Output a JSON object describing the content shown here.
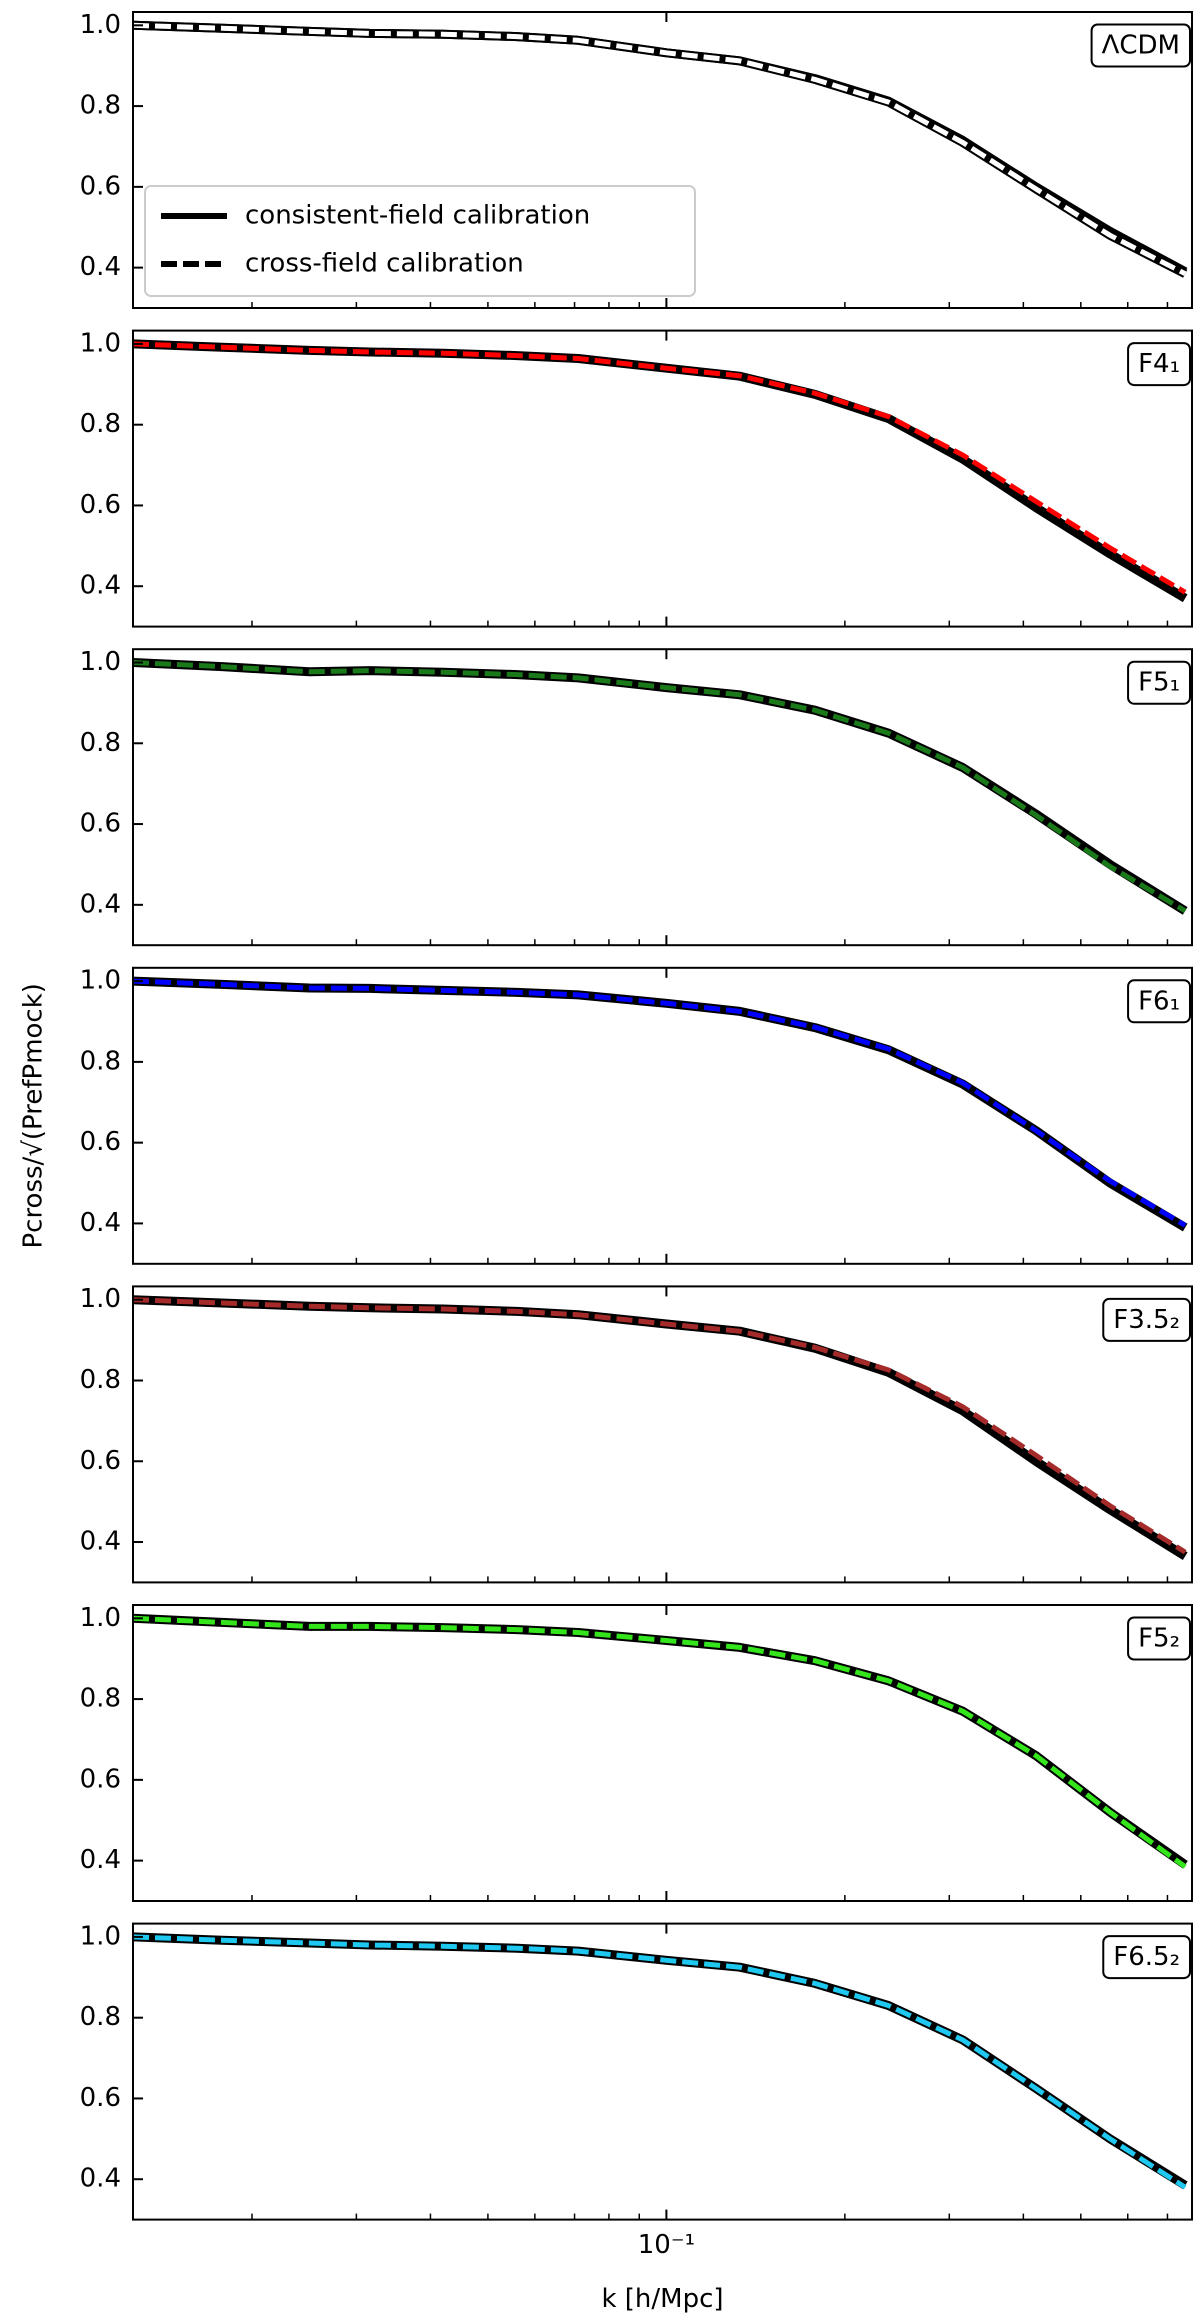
{
  "chart_data": [
    {
      "type": "line",
      "annotation": "ΛCDM",
      "legend": "lower left",
      "x": [
        0.0126,
        0.0178,
        0.025,
        0.0316,
        0.042,
        0.056,
        0.071,
        0.1,
        0.133,
        0.178,
        0.237,
        0.316,
        0.42,
        0.56,
        0.75
      ],
      "series": [
        {
          "name": "consistent-field calibration",
          "color": "#000000",
          "style": "solid",
          "values": [
            1.0,
            0.993,
            0.985,
            0.98,
            0.978,
            0.972,
            0.963,
            0.932,
            0.912,
            0.868,
            0.812,
            0.715,
            0.6,
            0.49,
            0.39
          ]
        },
        {
          "name": "cross-field calibration",
          "color": "#ffffff",
          "style": "dashed",
          "values": [
            1.0,
            0.993,
            0.985,
            0.98,
            0.978,
            0.972,
            0.963,
            0.932,
            0.912,
            0.866,
            0.81,
            0.71,
            0.595,
            0.48,
            0.385
          ]
        }
      ],
      "xlim": [
        0.0126,
        0.77
      ],
      "xticks": [
        0.1
      ],
      "xminorticks": [
        0.02,
        0.03,
        0.04,
        0.05,
        0.06,
        0.07,
        0.08,
        0.09,
        0.2,
        0.3,
        0.4,
        0.5,
        0.6,
        0.7
      ],
      "ylim": [
        0.3,
        1.033
      ],
      "yticks": [
        0.4,
        0.6,
        0.8,
        {
          "value": 1.0,
          "label": "1.0"
        }
      ]
    },
    {
      "type": "line",
      "annotation": "F4₁",
      "x": [
        0.0126,
        0.0178,
        0.025,
        0.0316,
        0.042,
        0.056,
        0.071,
        0.1,
        0.133,
        0.178,
        0.237,
        0.316,
        0.42,
        0.56,
        0.75
      ],
      "series": [
        {
          "name": "consistent-field calibration",
          "color": "#000000",
          "style": "solid",
          "values": [
            1.0,
            0.992,
            0.984,
            0.98,
            0.977,
            0.971,
            0.964,
            0.94,
            0.92,
            0.875,
            0.815,
            0.715,
            0.595,
            0.48,
            0.37
          ]
        },
        {
          "name": "cross-field calibration",
          "color": "#ff0000",
          "style": "dashed",
          "values": [
            1.0,
            0.992,
            0.984,
            0.98,
            0.977,
            0.971,
            0.964,
            0.94,
            0.921,
            0.878,
            0.82,
            0.725,
            0.61,
            0.495,
            0.385
          ]
        }
      ],
      "xlim": [
        0.0126,
        0.77
      ],
      "xticks": [
        0.1
      ],
      "xminorticks": [
        0.02,
        0.03,
        0.04,
        0.05,
        0.06,
        0.07,
        0.08,
        0.09,
        0.2,
        0.3,
        0.4,
        0.5,
        0.6,
        0.7
      ],
      "ylim": [
        0.3,
        1.033
      ],
      "yticks": [
        0.4,
        0.6,
        0.8,
        {
          "value": 1.0,
          "label": "1.0"
        }
      ]
    },
    {
      "type": "line",
      "annotation": "F5₁",
      "x": [
        0.0126,
        0.0178,
        0.025,
        0.0316,
        0.042,
        0.056,
        0.071,
        0.1,
        0.133,
        0.178,
        0.237,
        0.316,
        0.42,
        0.56,
        0.75
      ],
      "series": [
        {
          "name": "consistent-field calibration",
          "color": "#000000",
          "style": "solid",
          "values": [
            1.0,
            0.99,
            0.977,
            0.98,
            0.976,
            0.97,
            0.962,
            0.938,
            0.92,
            0.882,
            0.825,
            0.74,
            0.625,
            0.5,
            0.385
          ]
        },
        {
          "name": "cross-field calibration",
          "color": "#1a7a1a",
          "style": "dashed",
          "values": [
            1.0,
            0.99,
            0.977,
            0.98,
            0.976,
            0.97,
            0.962,
            0.938,
            0.92,
            0.882,
            0.825,
            0.74,
            0.622,
            0.495,
            0.385
          ]
        }
      ],
      "xlim": [
        0.0126,
        0.77
      ],
      "xticks": [
        0.1
      ],
      "xminorticks": [
        0.02,
        0.03,
        0.04,
        0.05,
        0.06,
        0.07,
        0.08,
        0.09,
        0.2,
        0.3,
        0.4,
        0.5,
        0.6,
        0.7
      ],
      "ylim": [
        0.3,
        1.033
      ],
      "yticks": [
        0.4,
        0.6,
        0.8,
        {
          "value": 1.0,
          "label": "1.0"
        }
      ]
    },
    {
      "type": "line",
      "annotation": "F6₁",
      "ylabel": "Pcross/√(PrefPmock)",
      "x": [
        0.0126,
        0.0178,
        0.025,
        0.0316,
        0.042,
        0.056,
        0.071,
        0.1,
        0.133,
        0.178,
        0.237,
        0.316,
        0.42,
        0.56,
        0.75
      ],
      "series": [
        {
          "name": "consistent-field calibration",
          "color": "#000000",
          "style": "solid",
          "values": [
            1.0,
            0.992,
            0.983,
            0.982,
            0.977,
            0.972,
            0.966,
            0.945,
            0.925,
            0.885,
            0.83,
            0.745,
            0.63,
            0.5,
            0.39
          ]
        },
        {
          "name": "cross-field calibration",
          "color": "#0000ff",
          "style": "dashed",
          "values": [
            1.0,
            0.992,
            0.983,
            0.982,
            0.977,
            0.972,
            0.966,
            0.945,
            0.925,
            0.886,
            0.832,
            0.748,
            0.63,
            0.505,
            0.395
          ]
        }
      ],
      "xlim": [
        0.0126,
        0.77
      ],
      "xticks": [
        0.1
      ],
      "xminorticks": [
        0.02,
        0.03,
        0.04,
        0.05,
        0.06,
        0.07,
        0.08,
        0.09,
        0.2,
        0.3,
        0.4,
        0.5,
        0.6,
        0.7
      ],
      "ylim": [
        0.3,
        1.033
      ],
      "yticks": [
        0.4,
        0.6,
        0.8,
        {
          "value": 1.0,
          "label": "1.0"
        }
      ]
    },
    {
      "type": "line",
      "annotation": "F3.5₂",
      "x": [
        0.0126,
        0.0178,
        0.025,
        0.0316,
        0.042,
        0.056,
        0.071,
        0.1,
        0.133,
        0.178,
        0.237,
        0.316,
        0.42,
        0.56,
        0.75
      ],
      "series": [
        {
          "name": "consistent-field calibration",
          "color": "#000000",
          "style": "solid",
          "values": [
            1.0,
            0.992,
            0.984,
            0.98,
            0.977,
            0.971,
            0.963,
            0.94,
            0.922,
            0.88,
            0.82,
            0.725,
            0.6,
            0.48,
            0.365
          ]
        },
        {
          "name": "cross-field calibration",
          "color": "#a52a2a",
          "style": "dashed",
          "values": [
            1.0,
            0.992,
            0.984,
            0.98,
            0.977,
            0.971,
            0.963,
            0.94,
            0.922,
            0.882,
            0.826,
            0.735,
            0.615,
            0.49,
            0.375
          ]
        }
      ],
      "xlim": [
        0.0126,
        0.77
      ],
      "xticks": [
        0.1
      ],
      "xminorticks": [
        0.02,
        0.03,
        0.04,
        0.05,
        0.06,
        0.07,
        0.08,
        0.09,
        0.2,
        0.3,
        0.4,
        0.5,
        0.6,
        0.7
      ],
      "ylim": [
        0.3,
        1.033
      ],
      "yticks": [
        0.4,
        0.6,
        0.8,
        {
          "value": 1.0,
          "label": "1.0"
        }
      ]
    },
    {
      "type": "line",
      "annotation": "F5₂",
      "x": [
        0.0126,
        0.0178,
        0.025,
        0.0316,
        0.042,
        0.056,
        0.071,
        0.1,
        0.133,
        0.178,
        0.237,
        0.316,
        0.42,
        0.56,
        0.75
      ],
      "series": [
        {
          "name": "consistent-field calibration",
          "color": "#000000",
          "style": "solid",
          "values": [
            1.0,
            0.99,
            0.98,
            0.98,
            0.977,
            0.972,
            0.965,
            0.945,
            0.928,
            0.895,
            0.845,
            0.77,
            0.66,
            0.52,
            0.39
          ]
        },
        {
          "name": "cross-field calibration",
          "color": "#33e51a",
          "style": "dashed",
          "values": [
            1.0,
            0.99,
            0.98,
            0.98,
            0.977,
            0.972,
            0.965,
            0.945,
            0.928,
            0.895,
            0.845,
            0.77,
            0.66,
            0.52,
            0.385
          ]
        }
      ],
      "xlim": [
        0.0126,
        0.77
      ],
      "xticks": [
        0.1
      ],
      "xminorticks": [
        0.02,
        0.03,
        0.04,
        0.05,
        0.06,
        0.07,
        0.08,
        0.09,
        0.2,
        0.3,
        0.4,
        0.5,
        0.6,
        0.7
      ],
      "ylim": [
        0.3,
        1.033
      ],
      "yticks": [
        0.4,
        0.6,
        0.8,
        {
          "value": 1.0,
          "label": "1.0"
        }
      ]
    },
    {
      "type": "line",
      "annotation": "F6.5₂",
      "xlabel": "k [h/Mpc]",
      "x": [
        0.0126,
        0.0178,
        0.025,
        0.0316,
        0.042,
        0.056,
        0.071,
        0.1,
        0.133,
        0.178,
        0.237,
        0.316,
        0.42,
        0.56,
        0.75
      ],
      "series": [
        {
          "name": "consistent-field calibration",
          "color": "#000000",
          "style": "solid",
          "values": [
            1.0,
            0.992,
            0.985,
            0.98,
            0.977,
            0.972,
            0.965,
            0.942,
            0.925,
            0.885,
            0.83,
            0.745,
            0.625,
            0.5,
            0.385
          ]
        },
        {
          "name": "cross-field calibration",
          "color": "#1ec8f0",
          "style": "dashed",
          "values": [
            1.0,
            0.992,
            0.985,
            0.98,
            0.977,
            0.972,
            0.965,
            0.942,
            0.925,
            0.885,
            0.83,
            0.745,
            0.625,
            0.5,
            0.38
          ]
        }
      ],
      "xlim": [
        0.0126,
        0.77
      ],
      "xticks": [
        {
          "value": 0.1,
          "label": "10⁻¹"
        }
      ],
      "xminorticks": [
        0.02,
        0.03,
        0.04,
        0.05,
        0.06,
        0.07,
        0.08,
        0.09,
        0.2,
        0.3,
        0.4,
        0.5,
        0.6,
        0.7
      ],
      "ylim": [
        0.3,
        1.033
      ],
      "yticks": [
        0.4,
        0.6,
        0.8,
        {
          "value": 1.0,
          "label": "1.0"
        }
      ]
    }
  ]
}
